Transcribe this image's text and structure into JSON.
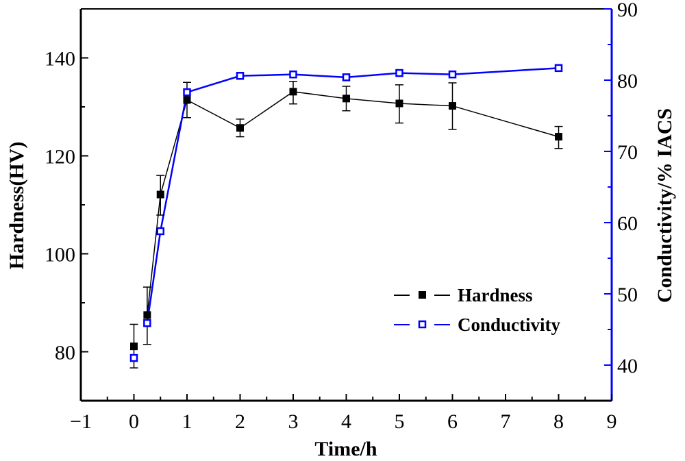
{
  "chart_data": {
    "type": "line",
    "title": "",
    "xlabel": "Time/h",
    "ylabel": "Hardness(HV)",
    "y2label": "Conductivity/% IACS",
    "xlim": [
      -1,
      9
    ],
    "ylim": [
      70,
      150
    ],
    "y2lim": [
      35,
      90
    ],
    "xticks": [
      -1,
      0,
      1,
      2,
      3,
      4,
      5,
      6,
      7,
      8,
      9
    ],
    "xtick_labels": [
      "−1",
      "0",
      "1",
      "2",
      "3",
      "4",
      "5",
      "6",
      "7",
      "8",
      "9"
    ],
    "yticks": [
      80,
      100,
      120,
      140
    ],
    "ytick_labels": [
      "80",
      "100",
      "120",
      "140"
    ],
    "y2ticks": [
      40,
      50,
      60,
      70,
      80,
      90
    ],
    "y2tick_labels": [
      "40",
      "50",
      "60",
      "70",
      "80",
      "90"
    ],
    "grid": false,
    "legend_position": "center-right",
    "x": [
      0,
      0.25,
      0.5,
      1,
      2,
      3,
      4,
      5,
      6,
      8
    ],
    "series": [
      {
        "name": "Hardness",
        "axis": "left",
        "color": "#000000",
        "marker": "filled-square",
        "values": [
          81.1,
          87.5,
          112.1,
          131.4,
          125.7,
          133.1,
          131.7,
          130.7,
          130.2,
          123.9
        ],
        "error_low": [
          76.7,
          81.5,
          107.9,
          127.8,
          123.9,
          130.6,
          129.2,
          126.7,
          125.4,
          121.5
        ],
        "error_high": [
          85.6,
          93.2,
          116.0,
          135.0,
          127.5,
          135.2,
          134.2,
          134.5,
          134.9,
          126.0
        ],
        "connect_from_index": 1
      },
      {
        "name": "Conductivity",
        "axis": "right",
        "color": "#0000ff",
        "marker": "open-square",
        "values": [
          41.0,
          45.9,
          58.8,
          78.3,
          80.6,
          80.8,
          80.4,
          81.0,
          80.8,
          81.7
        ],
        "connect_from_index": 1
      }
    ]
  }
}
